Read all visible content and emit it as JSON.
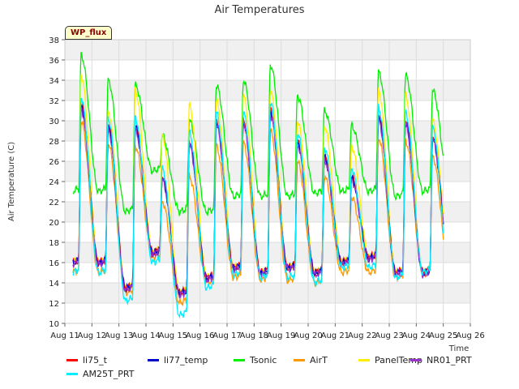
{
  "chart_data": {
    "type": "line",
    "title": "Air Temperatures",
    "xlabel": "Time",
    "ylabel": "Air Temperature (C)",
    "badge": "WP_flux",
    "ylim": [
      10,
      38
    ],
    "y_ticks": [
      10,
      12,
      14,
      16,
      18,
      20,
      22,
      24,
      26,
      28,
      30,
      32,
      34,
      36,
      38
    ],
    "x_ticks": [
      "Aug 11",
      "Aug 12",
      "Aug 13",
      "Aug 14",
      "Aug 15",
      "Aug 16",
      "Aug 17",
      "Aug 18",
      "Aug 19",
      "Aug 20",
      "Aug 21",
      "Aug 22",
      "Aug 23",
      "Aug 24",
      "Aug 25",
      "Aug 26"
    ],
    "xlim_days": [
      11,
      26
    ],
    "grid": true,
    "legend_position": "bottom",
    "series_meta": [
      {
        "name": "li75_t",
        "color": "#ff0000"
      },
      {
        "name": "li77_temp",
        "color": "#0000cc"
      },
      {
        "name": "Tsonic",
        "color": "#00ee00"
      },
      {
        "name": "AirT",
        "color": "#ff9900"
      },
      {
        "name": "PanelTemp",
        "color": "#ffee00"
      },
      {
        "name": "NR01_PRT",
        "color": "#9933cc"
      },
      {
        "name": "AM25T_PRT",
        "color": "#00eeff"
      }
    ],
    "daily": {
      "days": [
        "Aug 11",
        "Aug 12",
        "Aug 13",
        "Aug 14",
        "Aug 15",
        "Aug 16",
        "Aug 17",
        "Aug 18",
        "Aug 19",
        "Aug 20",
        "Aug 21",
        "Aug 22",
        "Aug 23",
        "Aug 24",
        "Aug 25"
      ],
      "li75_t_max": [
        31.5,
        29.5,
        29.5,
        24.5,
        28.0,
        30.0,
        30.0,
        31.0,
        28.0,
        26.5,
        24.5,
        30.5,
        30.0,
        28.5,
        28.5
      ],
      "li75_t_min": [
        15.5,
        16.0,
        13.5,
        17.0,
        13.0,
        14.5,
        15.5,
        15.0,
        15.5,
        15.0,
        16.0,
        16.5,
        15.0,
        15.0,
        16.0
      ],
      "Tsonic_max": [
        36.5,
        34.0,
        33.5,
        28.5,
        30.0,
        33.5,
        34.0,
        35.5,
        32.5,
        31.0,
        29.5,
        34.8,
        34.5,
        33.0,
        33.0
      ],
      "Tsonic_min": [
        21.8,
        23.0,
        21.0,
        25.0,
        21.0,
        21.0,
        22.5,
        22.5,
        22.5,
        22.8,
        23.0,
        23.0,
        22.5,
        23.0,
        23.0
      ],
      "AirT_max": [
        30.0,
        27.8,
        27.5,
        22.0,
        24.5,
        27.5,
        27.8,
        29.0,
        26.0,
        24.5,
        22.5,
        28.3,
        28.0,
        26.5,
        26.5
      ],
      "AirT_min": [
        14.2,
        15.0,
        13.0,
        16.5,
        12.0,
        14.0,
        14.5,
        14.3,
        14.2,
        14.0,
        15.0,
        15.0,
        14.5,
        15.0,
        14.5
      ],
      "PanelTemp_max": [
        34.5,
        31.0,
        33.0,
        28.5,
        31.5,
        32.0,
        32.5,
        33.0,
        30.0,
        29.5,
        27.5,
        33.0,
        32.5,
        30.0,
        29.0
      ],
      "AM25T_PRT_min": [
        14.0,
        15.0,
        12.2,
        16.0,
        10.8,
        13.5,
        14.8,
        14.5,
        14.5,
        14.0,
        15.5,
        15.5,
        14.5,
        15.0,
        13.8
      ]
    }
  }
}
